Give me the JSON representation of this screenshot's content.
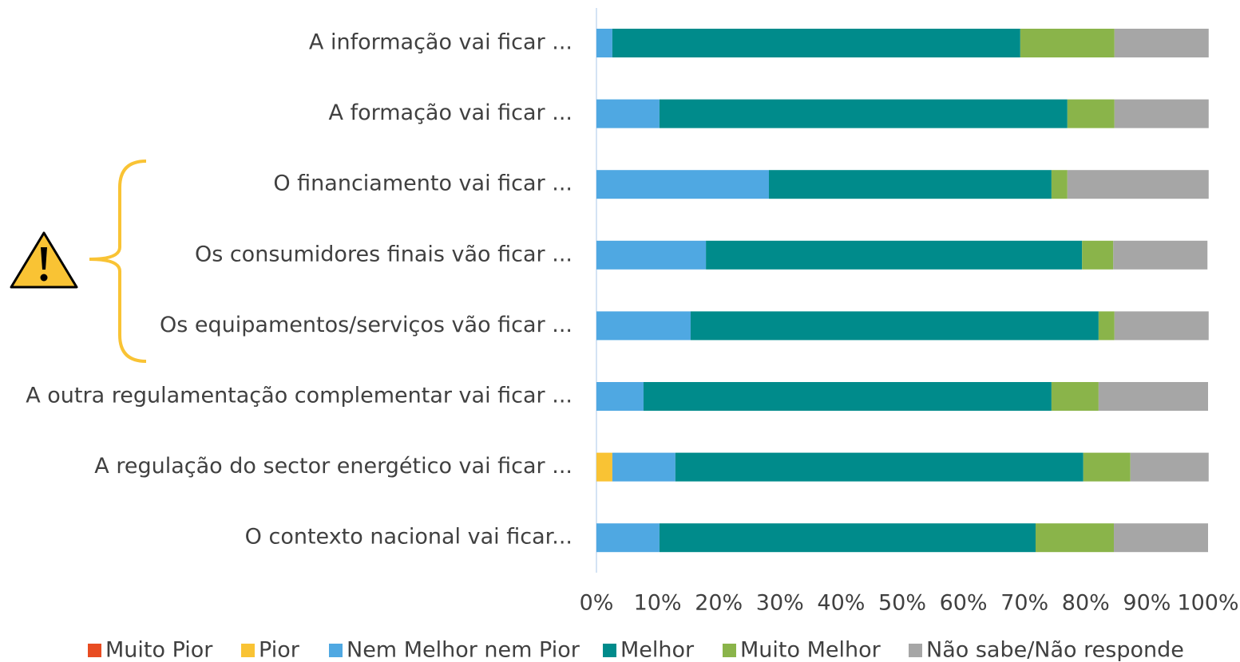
{
  "chart_data": {
    "type": "stacked-bar-horizontal",
    "categories": [
      "A informação vai ficar ...",
      "A formação vai ficar ...",
      "O financiamento vai ficar ...",
      "Os consumidores finais vão ficar ...",
      "Os equipamentos/serviços vão ficar ...",
      "A outra regulamentação complementar vai ficar ...",
      "A regulação do sector energético vai ficar ...",
      "O contexto nacional vai ficar..."
    ],
    "series": [
      {
        "name": "Muito Pior",
        "color": "#e84c22",
        "values": [
          0,
          0,
          0,
          0,
          0,
          0,
          0,
          0
        ]
      },
      {
        "name": "Pior",
        "color": "#f9c334",
        "values": [
          0,
          0,
          0,
          0,
          0,
          0,
          2.6,
          0
        ]
      },
      {
        "name": "Nem Melhor nem Pior",
        "color": "#4fa8e2",
        "values": [
          2.6,
          10.3,
          28.2,
          17.9,
          15.4,
          7.7,
          10.3,
          10.3
        ]
      },
      {
        "name": "Melhor",
        "color": "#008b8b",
        "values": [
          66.7,
          66.7,
          46.2,
          61.5,
          66.7,
          66.7,
          66.7,
          61.5
        ]
      },
      {
        "name": "Muito Melhor",
        "color": "#8ab44a",
        "values": [
          15.4,
          7.7,
          2.6,
          5.1,
          2.6,
          7.7,
          7.7,
          12.8
        ]
      },
      {
        "name": "Não sabe/Não responde",
        "color": "#a6a6a6",
        "values": [
          15.4,
          15.4,
          23.1,
          15.4,
          15.4,
          17.9,
          12.8,
          15.4
        ]
      }
    ],
    "xlim": [
      0,
      100
    ],
    "xticks": [
      {
        "value": 0,
        "label": "0%"
      },
      {
        "value": 10,
        "label": "10%"
      },
      {
        "value": 20,
        "label": "20%"
      },
      {
        "value": 30,
        "label": "30%"
      },
      {
        "value": 40,
        "label": "40%"
      },
      {
        "value": 50,
        "label": "50%"
      },
      {
        "value": 60,
        "label": "60%"
      },
      {
        "value": 70,
        "label": "70%"
      },
      {
        "value": 80,
        "label": "80%"
      },
      {
        "value": 90,
        "label": "90%"
      },
      {
        "value": 100,
        "label": "100%"
      }
    ],
    "legend": "bottom"
  }
}
